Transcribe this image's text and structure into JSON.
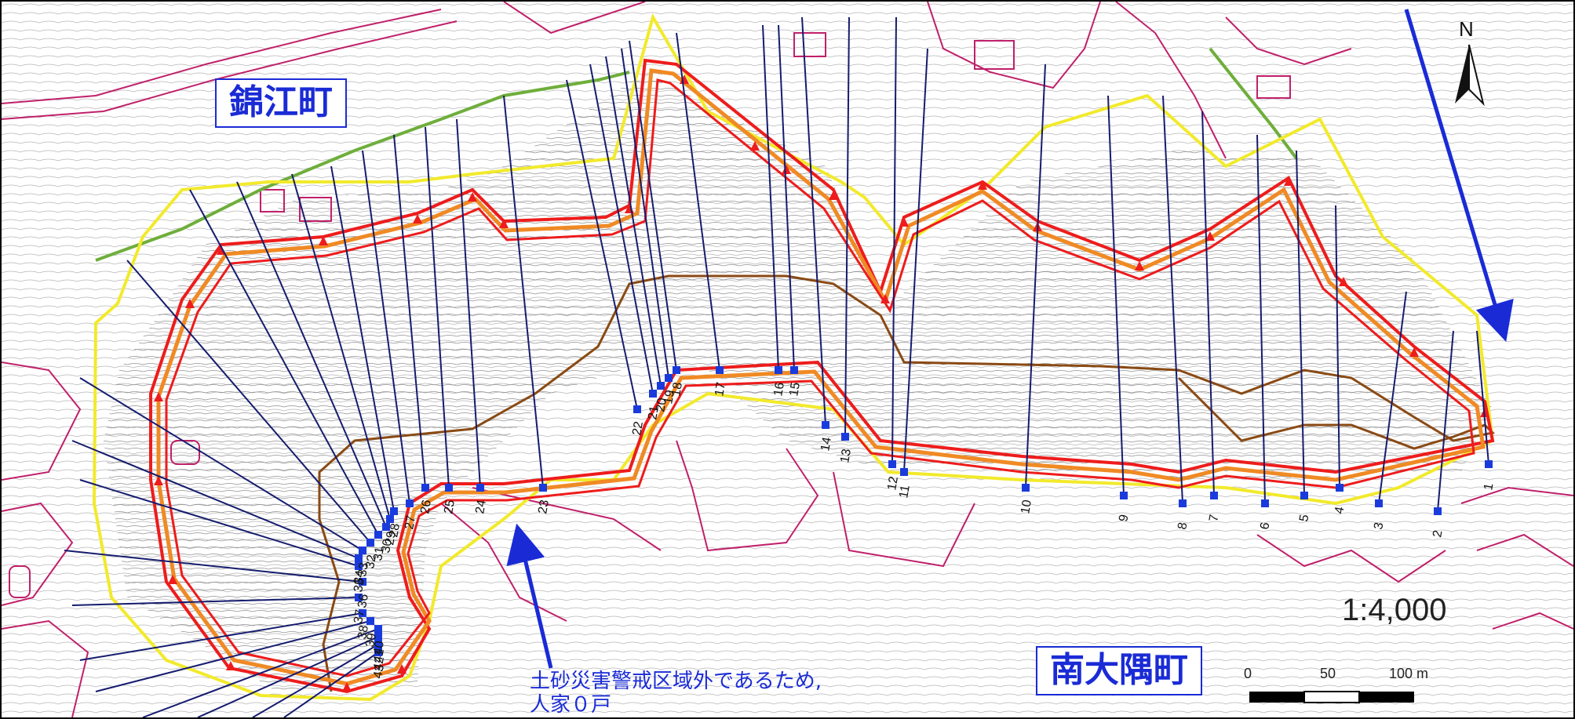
{
  "map": {
    "north_label": "N",
    "scale_ratio": "1:4,000",
    "scale_bar": {
      "ticks": [
        "0",
        "50",
        "100 m"
      ]
    },
    "towns": {
      "northwest": "錦江町",
      "southeast": "南大隅町"
    },
    "note_lines": [
      "土砂災害警戒区域外であるため,",
      "人家０戸"
    ],
    "colors": {
      "annotation": "#1a2bd6",
      "boundary_yellow": "#f2ea2c",
      "boundary_red": "#ee1c1c",
      "boundary_orange": "#f08a24",
      "boundary_brown": "#8a4a14",
      "transect": "#151c6e",
      "road": "#c0206a",
      "stream": "#6fae3c"
    },
    "transect_numbers": [
      "1",
      "2",
      "3",
      "4",
      "5",
      "6",
      "7",
      "8",
      "9",
      "10",
      "11",
      "12",
      "13",
      "14",
      "15",
      "16",
      "17",
      "18",
      "19",
      "20",
      "21",
      "22",
      "23",
      "24",
      "25",
      "26",
      "27",
      "28",
      "29",
      "30",
      "31",
      "32",
      "33",
      "34",
      "35",
      "36",
      "37",
      "38",
      "39",
      "40",
      "41",
      "42",
      "43"
    ]
  }
}
